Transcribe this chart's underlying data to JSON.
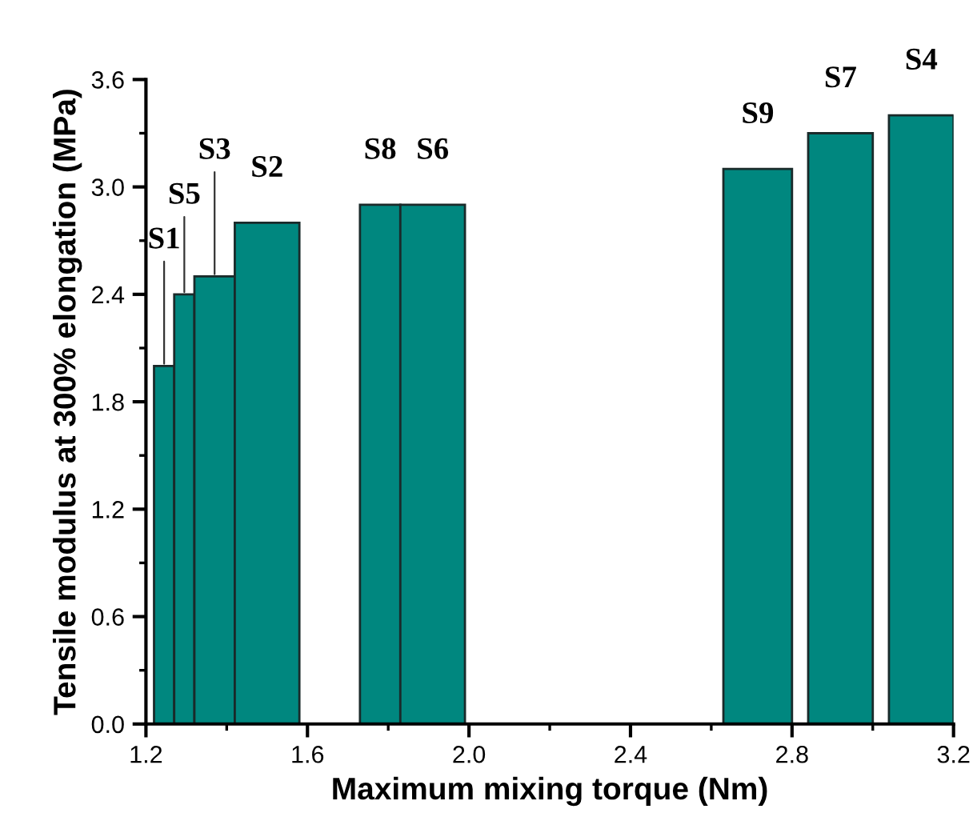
{
  "chart_data": {
    "type": "histogram",
    "xlabel": "Maximum mixing torque (Nm)",
    "ylabel": "Tensile modulus at 300% elongation (MPa)",
    "color": "#00877f",
    "bins": [
      1.22,
      1.27,
      1.32,
      1.42,
      1.58,
      1.73,
      1.83,
      1.99,
      2.63,
      2.8,
      2.84,
      3.0,
      3.04,
      3.2
    ],
    "values": [
      2.0,
      2.4,
      2.5,
      2.8,
      null,
      2.9,
      2.9,
      null,
      3.1,
      null,
      3.3,
      null,
      3.4
    ],
    "xlim": [
      1.2,
      3.2
    ],
    "ylim": [
      0,
      3.6
    ],
    "xticks": [
      1.2,
      1.6,
      {
        "value": 2,
        "label": "2.0"
      },
      2.4,
      2.8,
      3.2
    ],
    "yticks": [
      {
        "value": 0,
        "label": "0.0"
      },
      0.6,
      1.2,
      1.8,
      2.4,
      {
        "value": 3,
        "label": "3.0"
      },
      3.6
    ],
    "annotations": [
      {
        "text": "S1",
        "x": 1.245,
        "y": 2.0
      },
      {
        "text": "S5",
        "x": 1.295,
        "y": 2.4
      },
      {
        "text": "S3",
        "x": 1.37,
        "y": 2.5
      },
      {
        "text": "S2",
        "x": 1.5,
        "y": 2.8
      },
      {
        "text": "S8",
        "x": 1.78,
        "y": 2.9
      },
      {
        "text": "S6",
        "x": 1.91,
        "y": 2.9
      },
      {
        "text": "S9",
        "x": 2.715,
        "y": 3.1
      },
      {
        "text": "S7",
        "x": 2.92,
        "y": 3.3
      },
      {
        "text": "S4",
        "x": 3.12,
        "y": 3.4
      }
    ],
    "grid": false,
    "legend": false
  }
}
